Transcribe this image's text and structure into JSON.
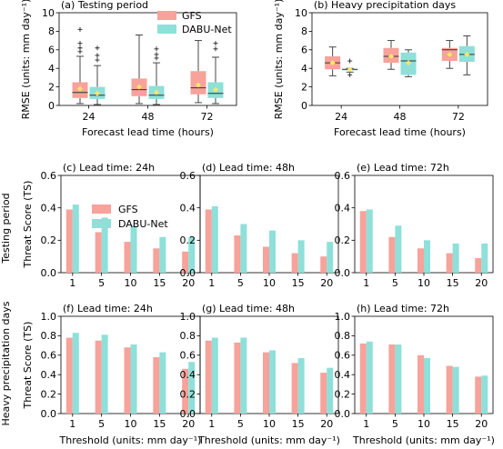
{
  "colors": {
    "gfs": "#f7a29a",
    "dabu": "#8ee0d9",
    "median": "#333333",
    "mean": "#ffe566"
  },
  "row_labels": [
    "Testing period",
    "Heavy precipitation days"
  ],
  "chart_data": [
    {
      "id": "a",
      "type": "box",
      "title": "(a) Testing period",
      "xlabel": "Forecast lead time (hours)",
      "ylabel": "RMSE (units: mm day⁻¹)",
      "categories": [
        "24",
        "48",
        "72"
      ],
      "ylim": [
        0,
        10
      ],
      "yticks": [
        0,
        2,
        4,
        6,
        8,
        10
      ],
      "legend": {
        "position": "top-right",
        "entries": [
          "GFS",
          "DABU-Net"
        ]
      },
      "series": [
        {
          "name": "GFS",
          "color": "gfs",
          "boxes": [
            {
              "whislo": 0.2,
              "q1": 0.8,
              "med": 1.4,
              "q3": 2.5,
              "whishi": 5.3,
              "mean": 1.8,
              "fliers": [
                5.8,
                6.2,
                6.7,
                8.2
              ]
            },
            {
              "whislo": 0.2,
              "q1": 1.0,
              "med": 1.7,
              "q3": 2.9,
              "whishi": 7.6,
              "mean": 2.0,
              "fliers": []
            },
            {
              "whislo": 0.3,
              "q1": 1.2,
              "med": 1.9,
              "q3": 3.7,
              "whishi": 7.0,
              "mean": 2.2,
              "fliers": []
            }
          ]
        },
        {
          "name": "DABU-Net",
          "color": "dabu",
          "boxes": [
            {
              "whislo": 0.1,
              "q1": 0.7,
              "med": 1.1,
              "q3": 2.0,
              "whishi": 4.3,
              "mean": 1.3,
              "fliers": [
                4.9,
                5.4,
                6.2
              ]
            },
            {
              "whislo": 0.1,
              "q1": 0.7,
              "med": 1.1,
              "q3": 2.1,
              "whishi": 4.6,
              "mean": 1.4,
              "fliers": [
                5.1,
                5.5,
                6.1
              ]
            },
            {
              "whislo": 0.2,
              "q1": 0.8,
              "med": 1.3,
              "q3": 2.5,
              "whishi": 5.2,
              "mean": 1.7,
              "fliers": [
                6.1,
                6.7
              ]
            }
          ]
        }
      ]
    },
    {
      "id": "b",
      "type": "box",
      "title": "(b) Heavy precipitation days",
      "xlabel": "Forecast lead time (hours)",
      "ylabel": "RMSE (units: mm day⁻¹)",
      "categories": [
        "24",
        "48",
        "72"
      ],
      "ylim": [
        0,
        10
      ],
      "yticks": [
        0,
        2,
        4,
        6,
        8,
        10
      ],
      "series": [
        {
          "name": "GFS",
          "color": "gfs",
          "boxes": [
            {
              "whislo": 3.2,
              "q1": 3.9,
              "med": 4.6,
              "q3": 5.3,
              "whishi": 6.3,
              "mean": 4.6,
              "fliers": []
            },
            {
              "whislo": 3.9,
              "q1": 4.6,
              "med": 5.3,
              "q3": 6.2,
              "whishi": 7.0,
              "mean": 5.3,
              "fliers": []
            },
            {
              "whislo": 4.0,
              "q1": 4.8,
              "med": 6.0,
              "q3": 6.2,
              "whishi": 7.0,
              "mean": 5.5,
              "fliers": []
            }
          ]
        },
        {
          "name": "DABU-Net",
          "color": "dabu",
          "boxes": [
            {
              "whislo": 3.6,
              "q1": 3.8,
              "med": 3.9,
              "q3": 3.9,
              "whishi": 4.0,
              "mean": 3.9,
              "fliers": [
                3.3,
                4.8
              ]
            },
            {
              "whislo": 3.1,
              "q1": 3.3,
              "med": 4.8,
              "q3": 5.7,
              "whishi": 6.0,
              "mean": 4.6,
              "fliers": []
            },
            {
              "whislo": 3.3,
              "q1": 4.7,
              "med": 5.5,
              "q3": 6.4,
              "whishi": 7.5,
              "mean": 5.5,
              "fliers": []
            }
          ]
        }
      ]
    },
    {
      "id": "c",
      "type": "bar",
      "title": "(c) Lead time: 24h",
      "xlabel": "",
      "ylabel": "Threat Score (TS)",
      "categories": [
        "1",
        "5",
        "10",
        "15",
        "20"
      ],
      "ylim": [
        0,
        0.6
      ],
      "yticks": [
        0.0,
        0.2,
        0.4,
        0.6
      ],
      "legend": {
        "position": "top-left",
        "entries": [
          "GFS",
          "DABU-Net"
        ]
      },
      "series": [
        {
          "name": "GFS",
          "values": [
            0.39,
            0.25,
            0.19,
            0.15,
            0.13
          ]
        },
        {
          "name": "DABU-Net",
          "values": [
            0.42,
            0.34,
            0.29,
            0.22,
            0.22
          ]
        }
      ]
    },
    {
      "id": "d",
      "type": "bar",
      "title": "(d) Lead time: 48h",
      "xlabel": "",
      "ylabel": "",
      "categories": [
        "1",
        "5",
        "10",
        "15",
        "20"
      ],
      "ylim": [
        0,
        0.6
      ],
      "yticks": [
        0.0,
        0.2,
        0.4,
        0.6
      ],
      "series": [
        {
          "name": "GFS",
          "values": [
            0.39,
            0.23,
            0.16,
            0.12,
            0.1
          ]
        },
        {
          "name": "DABU-Net",
          "values": [
            0.41,
            0.3,
            0.26,
            0.2,
            0.19
          ]
        }
      ]
    },
    {
      "id": "e",
      "type": "bar",
      "title": "(e) Lead time: 72h",
      "xlabel": "",
      "ylabel": "",
      "categories": [
        "1",
        "5",
        "10",
        "15",
        "20"
      ],
      "ylim": [
        0,
        0.6
      ],
      "yticks": [
        0.0,
        0.2,
        0.4,
        0.6
      ],
      "series": [
        {
          "name": "GFS",
          "values": [
            0.38,
            0.22,
            0.15,
            0.12,
            0.09
          ]
        },
        {
          "name": "DABU-Net",
          "values": [
            0.39,
            0.29,
            0.2,
            0.18,
            0.18
          ]
        }
      ]
    },
    {
      "id": "f",
      "type": "bar",
      "title": "(f) Lead time: 24h",
      "xlabel": "Threshold (units: mm day⁻¹)",
      "ylabel": "Threat Score (TS)",
      "categories": [
        "1",
        "5",
        "10",
        "15",
        "20"
      ],
      "ylim": [
        0,
        1.0
      ],
      "yticks": [
        0.0,
        0.2,
        0.4,
        0.6,
        0.8,
        1.0
      ],
      "series": [
        {
          "name": "GFS",
          "values": [
            0.78,
            0.75,
            0.68,
            0.58,
            0.46
          ]
        },
        {
          "name": "DABU-Net",
          "values": [
            0.83,
            0.81,
            0.71,
            0.63,
            0.53
          ]
        }
      ]
    },
    {
      "id": "g",
      "type": "bar",
      "title": "(g) Lead time: 48h",
      "xlabel": "Threshold (units: mm day⁻¹)",
      "ylabel": "",
      "categories": [
        "1",
        "5",
        "10",
        "15",
        "20"
      ],
      "ylim": [
        0,
        1.0
      ],
      "yticks": [
        0.0,
        0.2,
        0.4,
        0.6,
        0.8,
        1.0
      ],
      "series": [
        {
          "name": "GFS",
          "values": [
            0.75,
            0.73,
            0.63,
            0.52,
            0.42
          ]
        },
        {
          "name": "DABU-Net",
          "values": [
            0.78,
            0.78,
            0.65,
            0.57,
            0.47
          ]
        }
      ]
    },
    {
      "id": "h",
      "type": "bar",
      "title": "(h) Lead time: 72h",
      "xlabel": "Threshold (units: mm day⁻¹)",
      "ylabel": "",
      "categories": [
        "1",
        "5",
        "10",
        "15",
        "20"
      ],
      "ylim": [
        0,
        1.0
      ],
      "yticks": [
        0.0,
        0.2,
        0.4,
        0.6,
        0.8,
        1.0
      ],
      "series": [
        {
          "name": "GFS",
          "values": [
            0.72,
            0.71,
            0.6,
            0.49,
            0.38
          ]
        },
        {
          "name": "DABU-Net",
          "values": [
            0.74,
            0.71,
            0.57,
            0.48,
            0.39
          ]
        }
      ]
    }
  ]
}
